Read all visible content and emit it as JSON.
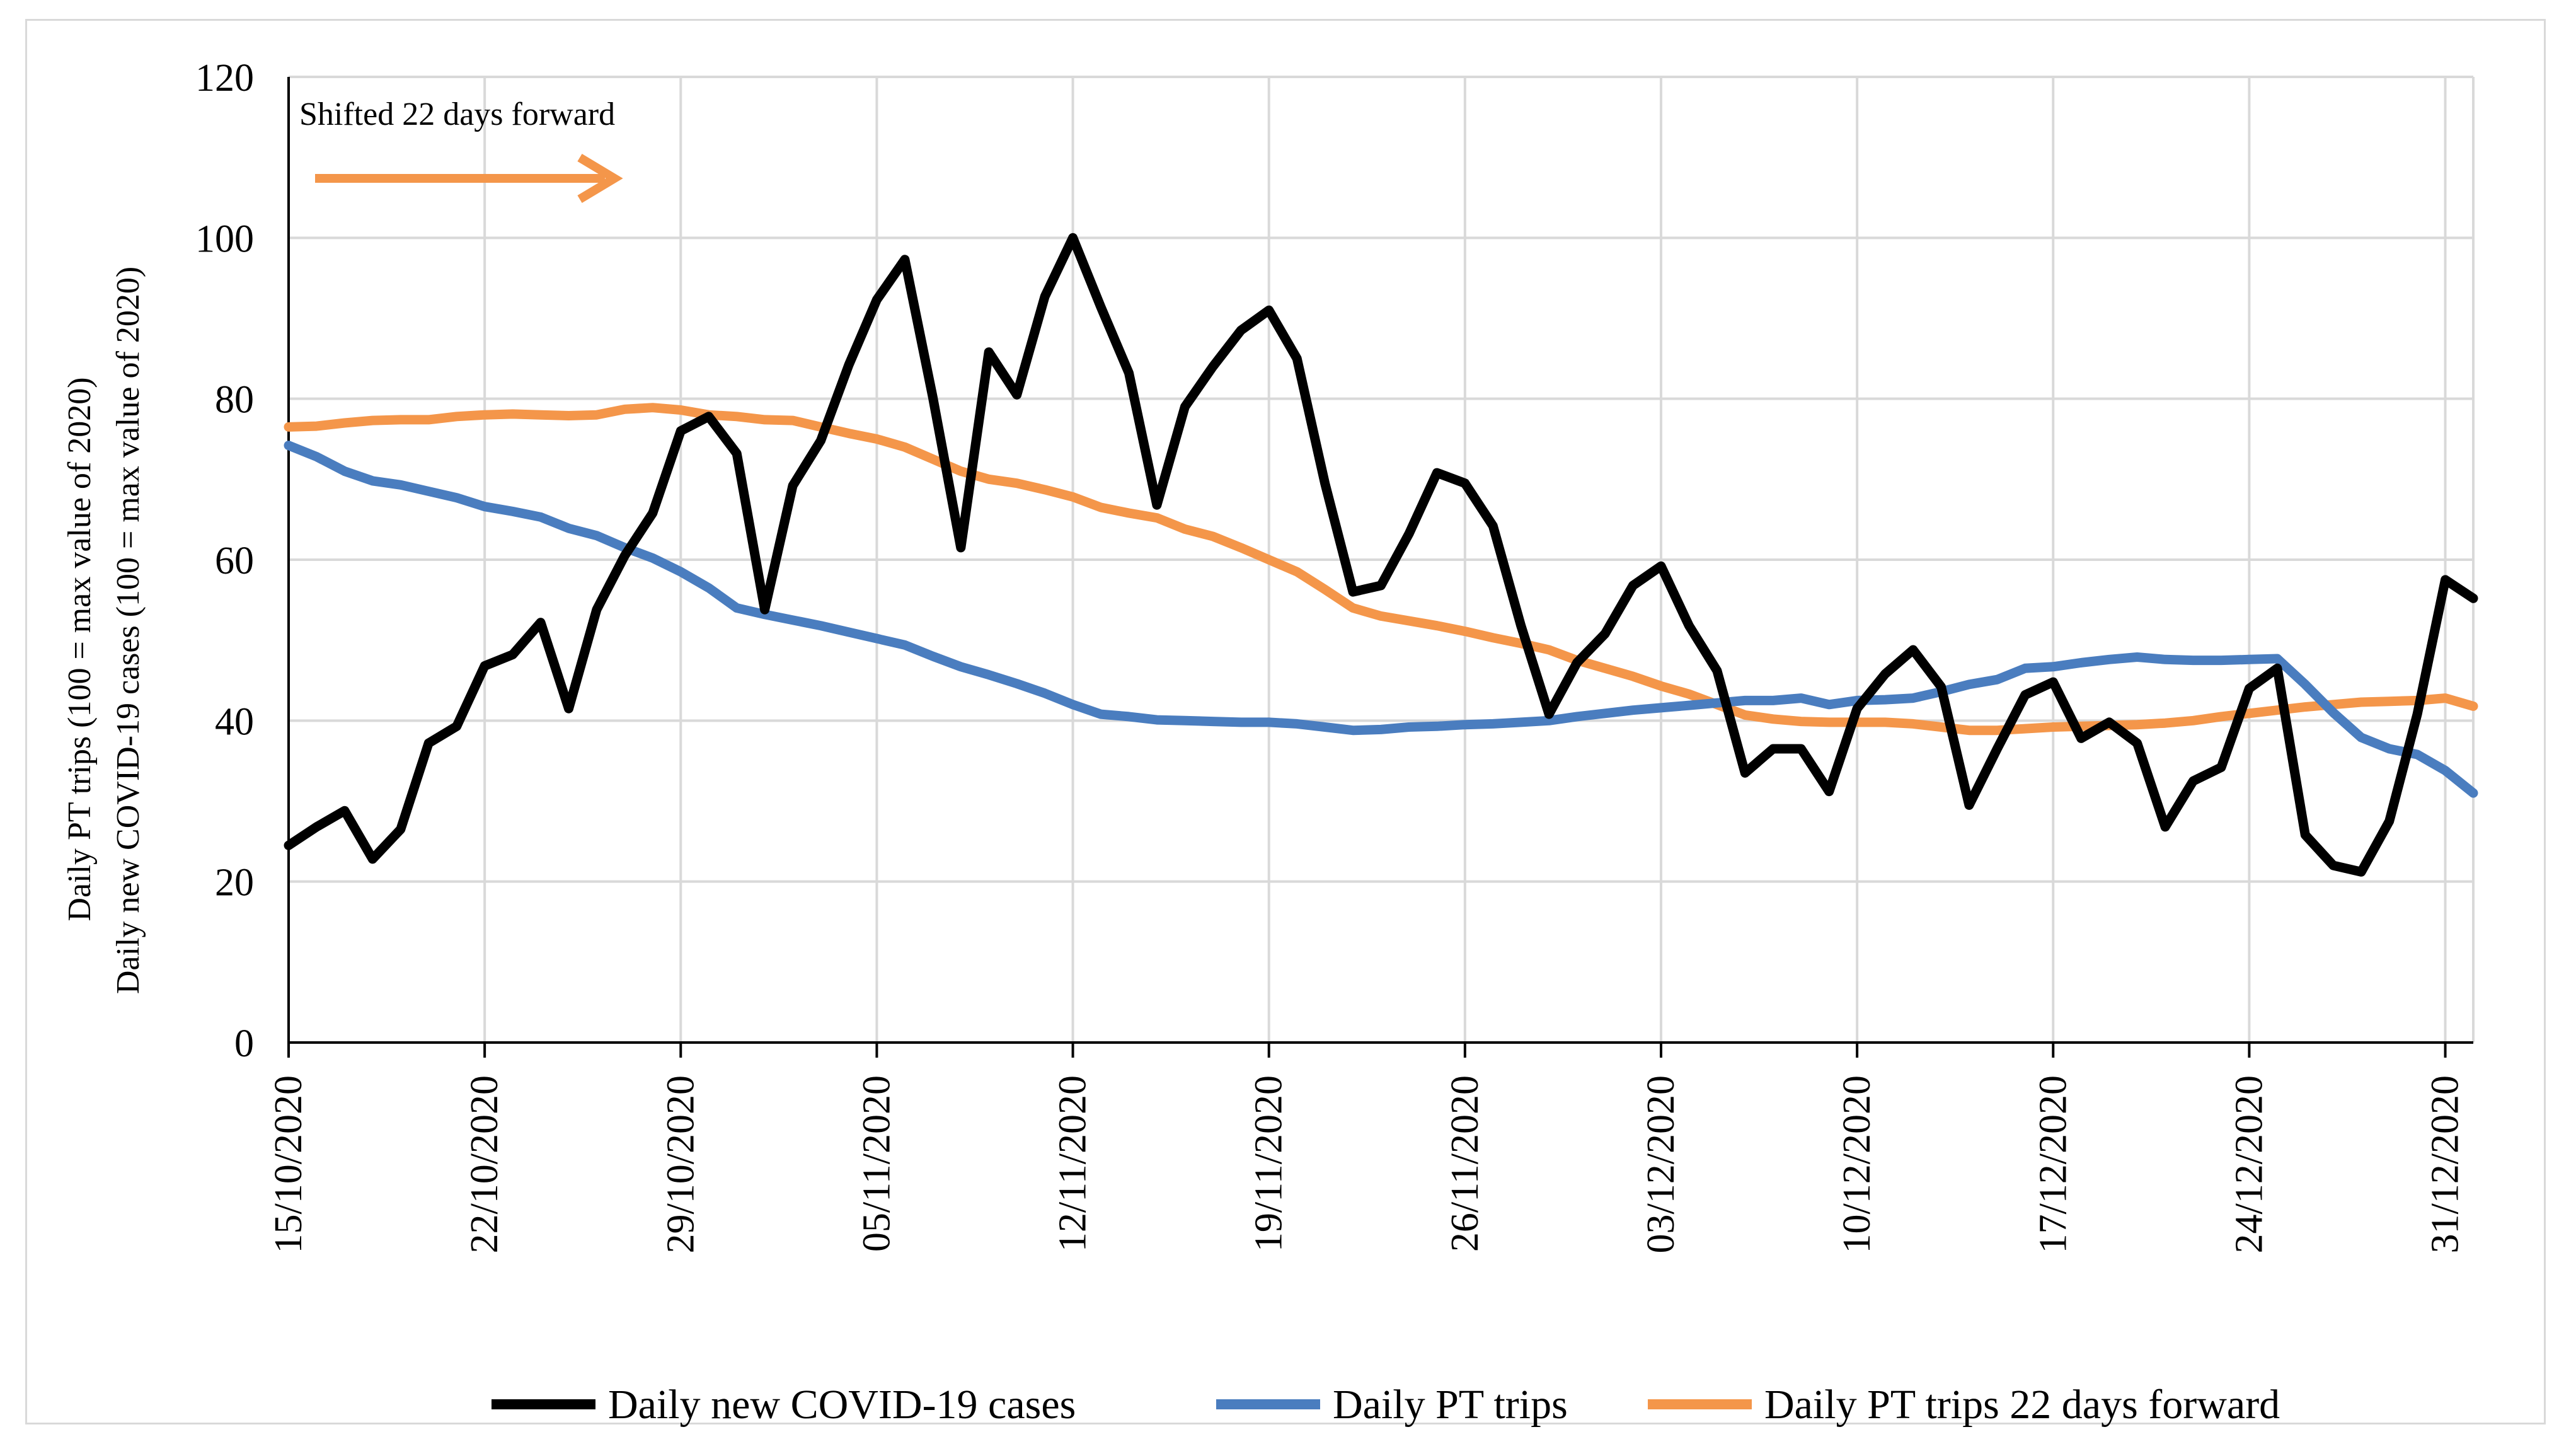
{
  "chart_data": {
    "type": "line",
    "title": "",
    "xlabel": "",
    "ylabel_lines": [
      "Daily PT trips (100 = max value of 2020)",
      "Daily new COVID-19 cases (100 = max value of 2020)"
    ],
    "ylim": [
      0,
      120
    ],
    "yticks": [
      0,
      20,
      40,
      60,
      80,
      100,
      120
    ],
    "x_tick_labels": [
      "15/10/2020",
      "22/10/2020",
      "29/10/2020",
      "05/11/2020",
      "12/11/2020",
      "19/11/2020",
      "26/11/2020",
      "03/12/2020",
      "10/12/2020",
      "17/12/2020",
      "24/12/2020",
      "31/12/2020"
    ],
    "x_tick_days": [
      0,
      7,
      14,
      21,
      28,
      35,
      42,
      49,
      56,
      63,
      70,
      77
    ],
    "x_range_days": [
      0,
      78
    ],
    "grid": true,
    "legend_position": "bottom",
    "annotation": {
      "text": "Shifted 22 days  forward",
      "arrow_color": "#F4964A",
      "arrow_direction": "right"
    },
    "series": [
      {
        "name": "Daily new COVID-19 cases",
        "color": "#000000",
        "values": [
          24.5,
          26.8,
          28.8,
          22.8,
          26.5,
          37.2,
          39.3,
          46.8,
          48.2,
          52.2,
          41.5,
          53.8,
          60.5,
          65.8,
          76.0,
          77.8,
          73.2,
          53.8,
          69.2,
          74.8,
          84.2,
          92.3,
          97.3,
          80.2,
          61.5,
          85.8,
          80.5,
          92.7,
          100.0,
          91.4,
          83.2,
          66.8,
          79.0,
          84.0,
          88.5,
          91.0,
          85.0,
          69.5,
          56.0,
          56.8,
          63.2,
          70.8,
          69.5,
          64.2,
          51.8,
          40.8,
          47.2,
          50.8,
          56.8,
          59.2,
          51.8,
          46.2,
          33.5,
          36.5,
          36.5,
          31.2,
          41.5,
          45.8,
          48.8,
          44.2,
          29.5,
          36.5,
          43.2,
          44.8,
          37.8,
          39.8,
          37.2,
          26.8,
          32.5,
          34.2,
          44.0,
          46.5,
          25.8,
          22.0,
          21.2,
          27.5,
          40.8,
          57.5,
          55.2
        ]
      },
      {
        "name": "Daily PT trips",
        "color": "#4A7DBF",
        "values": [
          74.2,
          72.8,
          71.0,
          69.8,
          69.3,
          68.5,
          67.7,
          66.6,
          66.0,
          65.3,
          63.9,
          63.0,
          61.5,
          60.2,
          58.5,
          56.5,
          54.0,
          53.2,
          52.5,
          51.8,
          51.0,
          50.2,
          49.4,
          48.0,
          46.7,
          45.7,
          44.6,
          43.4,
          42.0,
          40.8,
          40.5,
          40.1,
          40.0,
          39.9,
          39.8,
          39.8,
          39.6,
          39.2,
          38.8,
          38.9,
          39.2,
          39.3,
          39.5,
          39.6,
          39.8,
          40.0,
          40.5,
          40.9,
          41.3,
          41.6,
          41.9,
          42.2,
          42.5,
          42.5,
          42.8,
          42.0,
          42.5,
          42.6,
          42.8,
          43.6,
          44.5,
          45.1,
          46.5,
          46.7,
          47.2,
          47.6,
          47.9,
          47.6,
          47.5,
          47.5,
          47.6,
          47.7,
          44.5,
          41.0,
          37.9,
          36.5,
          35.8,
          33.8,
          31.0
        ]
      },
      {
        "name": "Daily PT trips 22 days forward",
        "color": "#F4964A",
        "values": [
          76.5,
          76.6,
          77.0,
          77.3,
          77.4,
          77.4,
          77.8,
          78.0,
          78.1,
          78.0,
          77.9,
          78.0,
          78.7,
          78.9,
          78.6,
          78.0,
          77.8,
          77.4,
          77.3,
          76.5,
          75.7,
          75.0,
          74.0,
          72.5,
          71.0,
          70.0,
          69.5,
          68.7,
          67.8,
          66.5,
          65.8,
          65.2,
          63.8,
          62.9,
          61.5,
          60.0,
          58.5,
          56.3,
          54.0,
          53.0,
          52.4,
          51.8,
          51.1,
          50.3,
          49.6,
          48.8,
          47.5,
          46.5,
          45.5,
          44.3,
          43.3,
          42.0,
          40.7,
          40.2,
          39.9,
          39.8,
          39.8,
          39.8,
          39.6,
          39.2,
          38.8,
          38.8,
          39.0,
          39.2,
          39.3,
          39.4,
          39.5,
          39.7,
          40.0,
          40.5,
          40.9,
          41.3,
          41.7,
          42.0,
          42.3,
          42.4,
          42.5,
          42.8,
          41.8
        ]
      }
    ]
  }
}
